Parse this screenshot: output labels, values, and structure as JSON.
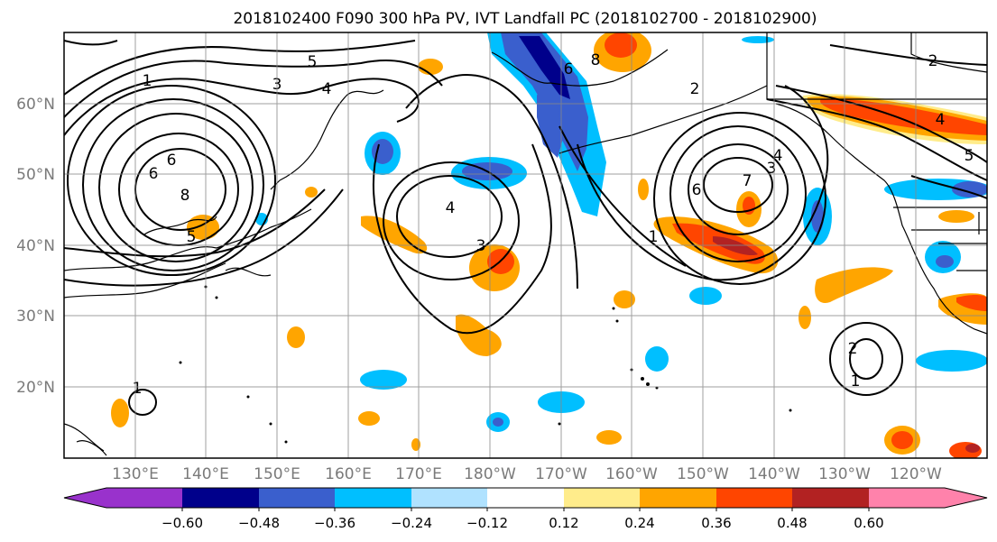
{
  "title": "2018102400 F090 300 hPa PV, IVT Landfall PC (2018102700 - 2018102900)",
  "lat_labels": [
    "60°N",
    "50°N",
    "40°N",
    "30°N",
    "20°N"
  ],
  "lon_labels": [
    "130°E",
    "140°E",
    "150°E",
    "160°E",
    "170°E",
    "180°W",
    "170°W",
    "160°W",
    "150°W",
    "140°W",
    "130°W",
    "120°W"
  ],
  "colorbar": {
    "ticks": [
      "−0.60",
      "−0.48",
      "−0.36",
      "−0.24",
      "−0.12",
      "0.12",
      "0.24",
      "0.36",
      "0.48",
      "0.60"
    ],
    "colors": [
      "#9932cc",
      "#00008b",
      "#3a5fcd",
      "#00bfff",
      "#b0e2ff",
      "#ffffff",
      "#ffec8b",
      "#ffa500",
      "#ff4500",
      "#b22222",
      "#ff82ab"
    ]
  },
  "contour_labels": [
    "5",
    "3",
    "4",
    "6",
    "8",
    "6",
    "5",
    "4",
    "3",
    "6",
    "8",
    "2",
    "6",
    "7",
    "4",
    "1",
    "3",
    "2",
    "4",
    "5",
    "2",
    "1",
    "1",
    "1"
  ]
}
